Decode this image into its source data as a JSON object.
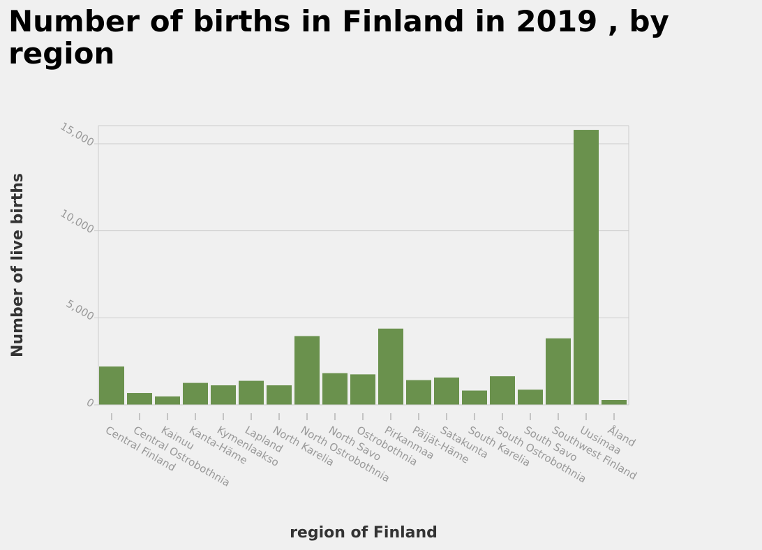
{
  "chart_data": {
    "type": "bar",
    "title": "Number of births in Finland in 2019 , by region",
    "xlabel": "region of Finland",
    "ylabel": "Number of live births",
    "categories": [
      "Central Finland",
      "Central Ostrobothnia",
      "Kainuu",
      "Kanta-Häme",
      "Kymenlaakso",
      "Lapland",
      "North Karelia",
      "North Ostrobothnia",
      "North Savo",
      "Ostrobothnia",
      "Pirkanmaa",
      "Päijät-Häme",
      "Satakunta",
      "South Karelia",
      "South Ostrobothnia",
      "South Savo",
      "Southwest Finland",
      "Uusimaa",
      "Åland"
    ],
    "values": [
      2200,
      680,
      480,
      1260,
      1120,
      1380,
      1120,
      3950,
      1820,
      1750,
      4380,
      1420,
      1570,
      820,
      1640,
      870,
      3820,
      15800,
      280
    ],
    "ylim": [
      0,
      16000
    ],
    "yticks": [
      0,
      5000,
      10000,
      15000
    ],
    "ytick_labels": [
      "0",
      "5,000",
      "10,000",
      "15,000"
    ],
    "grid": true,
    "bar_color": "#6a914d",
    "grid_color": "#cccccc",
    "background_color": "#f0f0f0"
  }
}
